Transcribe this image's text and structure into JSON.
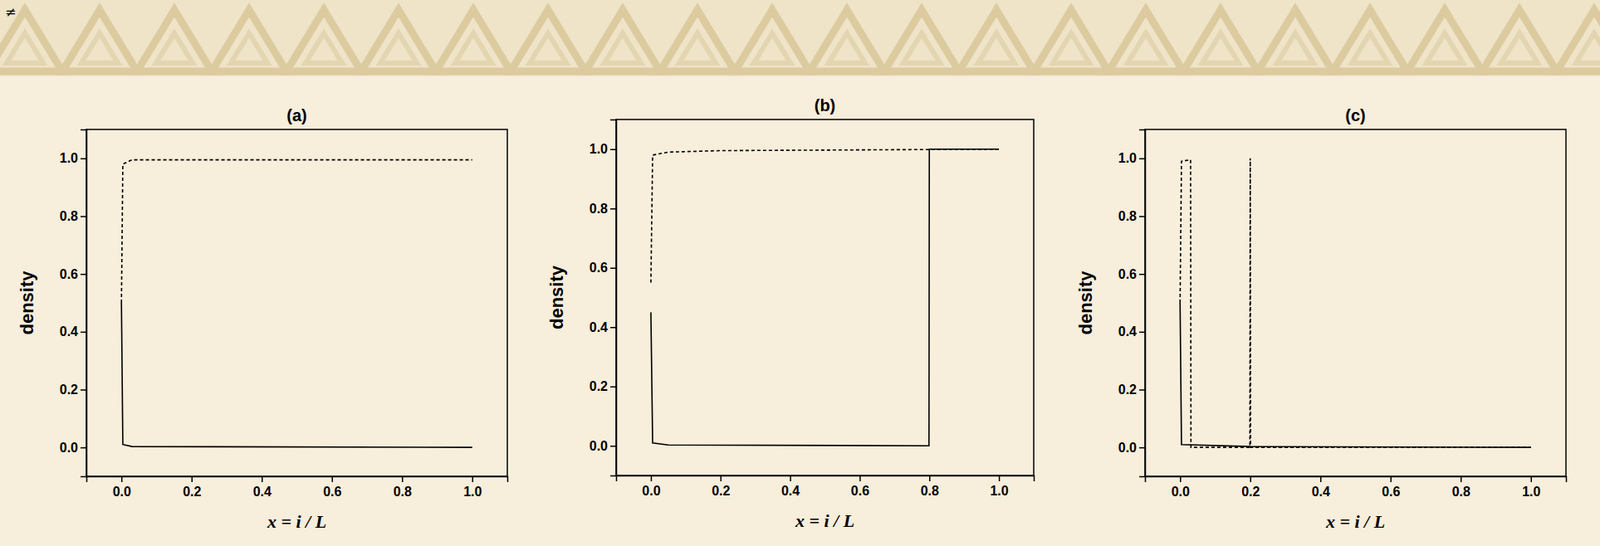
{
  "page": {
    "symbol": "≠"
  },
  "chart_data": [
    {
      "type": "line",
      "title": "(a)",
      "x_label": "x = i / L",
      "y_label": "density",
      "xlim": [
        -0.1,
        1.1
      ],
      "ylim": [
        -0.1,
        1.1
      ],
      "xticks": [
        {
          "value": 0,
          "label": "0.0"
        },
        {
          "value": 0.2,
          "label": "0.2"
        },
        {
          "value": 0.4,
          "label": "0.4"
        },
        {
          "value": 0.6,
          "label": "0.6"
        },
        {
          "value": 0.8,
          "label": "0.8"
        },
        {
          "value": 1,
          "label": "1.0"
        }
      ],
      "yticks": [
        {
          "value": 0,
          "label": "0.0"
        },
        {
          "value": 0.2,
          "label": "0.2"
        },
        {
          "value": 0.4,
          "label": "0.4"
        },
        {
          "value": 0.6,
          "label": "0.6"
        },
        {
          "value": 0.8,
          "label": "0.8"
        },
        {
          "value": 1,
          "label": "1.0"
        }
      ],
      "series": [
        {
          "color": "#000000",
          "line_style": "dashed",
          "x": [
            0,
            0.004,
            0.03,
            1.0
          ],
          "values": [
            0.5,
            0.98,
            0.995,
            0.995
          ]
        },
        {
          "color": "#000000",
          "line_style": "solid",
          "x": [
            0,
            0.004,
            0.03,
            1.0
          ],
          "values": [
            0.5,
            0.01,
            0.003,
            0
          ]
        }
      ]
    },
    {
      "type": "line",
      "title": "(b)",
      "x_label": "x = i / L",
      "y_label": "density",
      "xlim": [
        -0.1,
        1.1
      ],
      "ylim": [
        -0.1,
        1.1
      ],
      "xticks": [
        {
          "value": 0,
          "label": "0.0"
        },
        {
          "value": 0.2,
          "label": "0.2"
        },
        {
          "value": 0.4,
          "label": "0.4"
        },
        {
          "value": 0.6,
          "label": "0.6"
        },
        {
          "value": 0.8,
          "label": "0.8"
        },
        {
          "value": 1,
          "label": "1.0"
        }
      ],
      "yticks": [
        {
          "value": 0,
          "label": "0.0"
        },
        {
          "value": 0.2,
          "label": "0.2"
        },
        {
          "value": 0.4,
          "label": "0.4"
        },
        {
          "value": 0.6,
          "label": "0.6"
        },
        {
          "value": 0.8,
          "label": "0.8"
        },
        {
          "value": 1,
          "label": "1.0"
        }
      ],
      "series": [
        {
          "color": "#000000",
          "line_style": "dashed",
          "x": [
            0,
            0.005,
            0.05,
            0.2,
            1.0
          ],
          "values": [
            0.55,
            0.98,
            0.99,
            0.995,
            1.0
          ]
        },
        {
          "color": "#000000",
          "line_style": "solid",
          "x": [
            0,
            0.005,
            0.05,
            0.799,
            0.8,
            1.0
          ],
          "values": [
            0.45,
            0.01,
            0.003,
            0,
            1.0,
            1.0
          ]
        }
      ]
    },
    {
      "type": "line",
      "title": "(c)",
      "x_label": "x = i / L",
      "y_label": "density",
      "xlim": [
        -0.1,
        1.1
      ],
      "ylim": [
        -0.1,
        1.1
      ],
      "xticks": [
        {
          "value": 0,
          "label": "0.0"
        },
        {
          "value": 0.2,
          "label": "0.2"
        },
        {
          "value": 0.4,
          "label": "0.4"
        },
        {
          "value": 0.6,
          "label": "0.6"
        },
        {
          "value": 0.8,
          "label": "0.8"
        },
        {
          "value": 1,
          "label": "1.0"
        }
      ],
      "yticks": [
        {
          "value": 0,
          "label": "0.0"
        },
        {
          "value": 0.2,
          "label": "0.2"
        },
        {
          "value": 0.4,
          "label": "0.4"
        },
        {
          "value": 0.6,
          "label": "0.6"
        },
        {
          "value": 0.8,
          "label": "0.8"
        },
        {
          "value": 1,
          "label": "1.0"
        }
      ],
      "series": [
        {
          "color": "#000000",
          "line_style": "dashed",
          "x": [
            0,
            0.004,
            0.03,
            0.031,
            0.199,
            0.2,
            0.201,
            1.0
          ],
          "values": [
            0.5,
            0.99,
            0.995,
            0,
            0,
            1.0,
            0,
            0
          ]
        },
        {
          "color": "#000000",
          "line_style": "solid",
          "x": [
            0,
            0.004,
            0.2,
            1.0
          ],
          "values": [
            0.5,
            0.01,
            0.003,
            0
          ]
        }
      ]
    }
  ]
}
